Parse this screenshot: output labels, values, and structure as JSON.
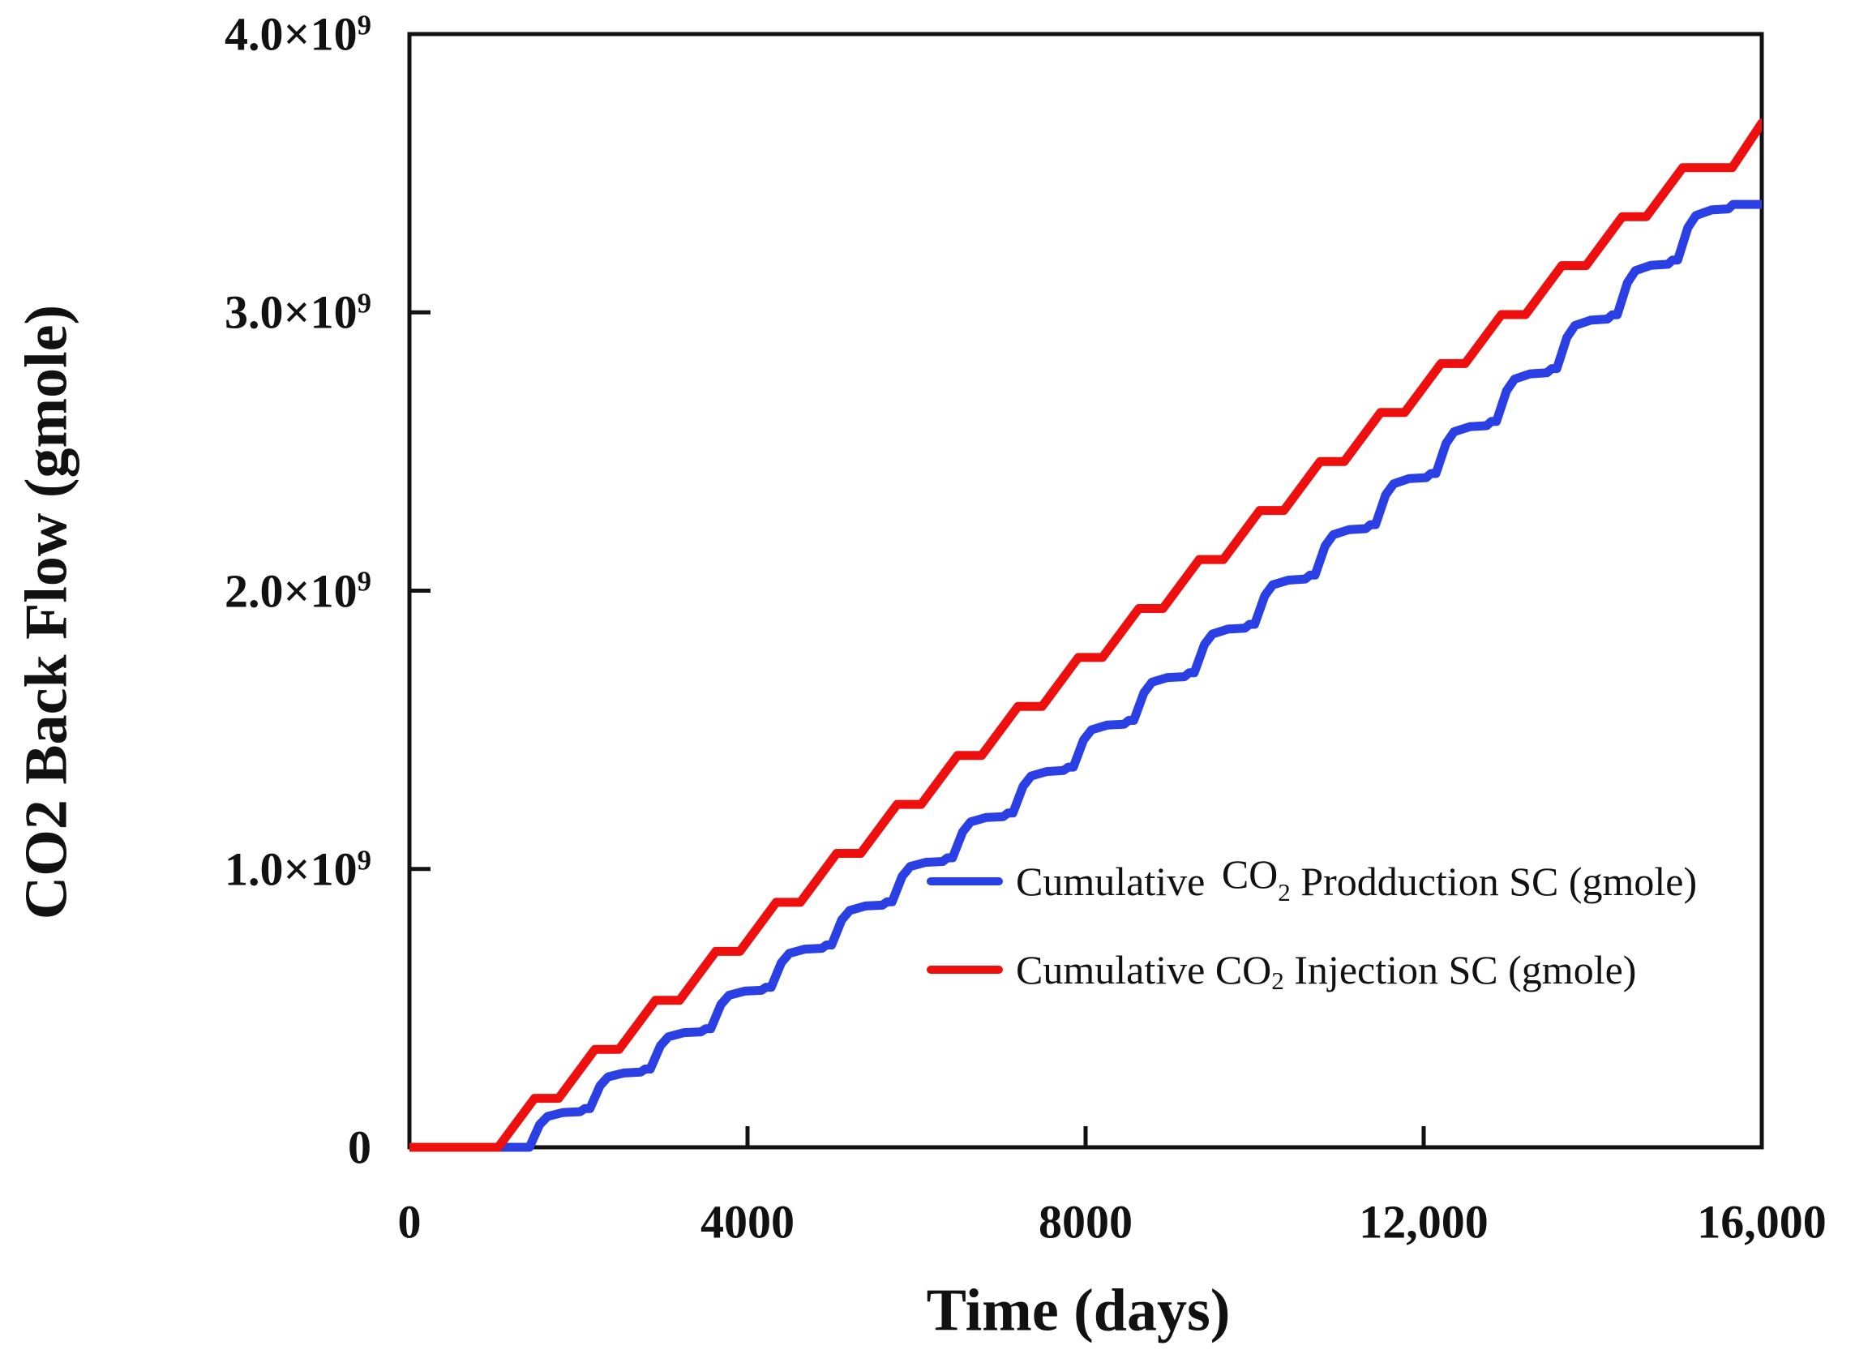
{
  "figure": {
    "x_axis": {
      "ticks": [
        {
          "value": 0,
          "label": "0"
        },
        {
          "value": 4000,
          "label": "4000"
        },
        {
          "value": 8000,
          "label": "8000"
        },
        {
          "value": 12000,
          "label": "12,000"
        },
        {
          "value": 16000,
          "label": "16,000"
        }
      ]
    },
    "y_axis": {
      "ticks": [
        {
          "value": 0,
          "base": "0",
          "sup": ""
        },
        {
          "value": 1000000000,
          "base": "1.0×10",
          "sup": "9"
        },
        {
          "value": 2000000000,
          "base": "2.0×10",
          "sup": "9"
        },
        {
          "value": 3000000000,
          "base": "3.0×10",
          "sup": "9"
        },
        {
          "value": 4000000000,
          "base": "4.0×10",
          "sup": "9"
        }
      ]
    },
    "legend": {
      "items": [
        {
          "prefix": "Cumulative",
          "co": "CO",
          "sub": "2",
          "suffix": " Prodduction SC (gmole)",
          "co_raised": true,
          "series": 0
        },
        {
          "prefix": "Cumulative",
          "co": "CO",
          "sub": "2",
          "suffix": " Injection SC (gmole)",
          "co_raised": false,
          "series": 1
        }
      ]
    }
  },
  "chart_data": {
    "type": "line",
    "title": "",
    "xlabel": "Time (days)",
    "ylabel": "CO2 Back Flow (gmole)",
    "xlim": [
      0,
      16000
    ],
    "ylim": [
      0,
      4000000000
    ],
    "x_ticks": [
      0,
      4000,
      8000,
      12000,
      16000
    ],
    "y_ticks": [
      0,
      1000000000,
      2000000000,
      3000000000,
      4000000000
    ],
    "grid": false,
    "legend_position": "inside-center-right",
    "value_scale": 1000000000,
    "value_unit": "gmole (points given in units of 1e9)",
    "series": [
      {
        "name": "Cumulative CO2 Prodduction SC (gmole)",
        "color": "#2a3fe4",
        "style": "stepped-rounded",
        "points": [
          [
            0,
            0
          ],
          [
            1420,
            0
          ],
          [
            1540,
            0.081
          ],
          [
            1635,
            0.111
          ],
          [
            1820,
            0.125
          ],
          [
            2020,
            0.128
          ],
          [
            2075,
            0.139
          ],
          [
            2135,
            0.139
          ],
          [
            2255,
            0.221
          ],
          [
            2350,
            0.253
          ],
          [
            2535,
            0.267
          ],
          [
            2735,
            0.27
          ],
          [
            2790,
            0.281
          ],
          [
            2850,
            0.281
          ],
          [
            2970,
            0.365
          ],
          [
            3065,
            0.397
          ],
          [
            3250,
            0.412
          ],
          [
            3450,
            0.415
          ],
          [
            3505,
            0.426
          ],
          [
            3565,
            0.426
          ],
          [
            3685,
            0.513
          ],
          [
            3780,
            0.546
          ],
          [
            3965,
            0.561
          ],
          [
            4165,
            0.564
          ],
          [
            4220,
            0.575
          ],
          [
            4280,
            0.575
          ],
          [
            4400,
            0.663
          ],
          [
            4495,
            0.697
          ],
          [
            4680,
            0.712
          ],
          [
            4880,
            0.715
          ],
          [
            4935,
            0.727
          ],
          [
            4995,
            0.727
          ],
          [
            5115,
            0.817
          ],
          [
            5210,
            0.851
          ],
          [
            5395,
            0.867
          ],
          [
            5595,
            0.87
          ],
          [
            5650,
            0.882
          ],
          [
            5710,
            0.882
          ],
          [
            5830,
            0.974
          ],
          [
            5925,
            1.009
          ],
          [
            6110,
            1.024
          ],
          [
            6310,
            1.027
          ],
          [
            6365,
            1.04
          ],
          [
            6425,
            1.04
          ],
          [
            6545,
            1.133
          ],
          [
            6640,
            1.169
          ],
          [
            6825,
            1.185
          ],
          [
            7025,
            1.188
          ],
          [
            7080,
            1.201
          ],
          [
            7140,
            1.201
          ],
          [
            7260,
            1.297
          ],
          [
            7355,
            1.334
          ],
          [
            7540,
            1.35
          ],
          [
            7740,
            1.354
          ],
          [
            7795,
            1.366
          ],
          [
            7855,
            1.366
          ],
          [
            7975,
            1.463
          ],
          [
            8070,
            1.5
          ],
          [
            8255,
            1.517
          ],
          [
            8455,
            1.52
          ],
          [
            8510,
            1.534
          ],
          [
            8570,
            1.534
          ],
          [
            8690,
            1.633
          ],
          [
            8785,
            1.671
          ],
          [
            8970,
            1.688
          ],
          [
            9170,
            1.691
          ],
          [
            9225,
            1.705
          ],
          [
            9285,
            1.705
          ],
          [
            9405,
            1.806
          ],
          [
            9500,
            1.844
          ],
          [
            9685,
            1.862
          ],
          [
            9885,
            1.865
          ],
          [
            9940,
            1.879
          ],
          [
            10000,
            1.879
          ],
          [
            10120,
            1.982
          ],
          [
            10215,
            2.021
          ],
          [
            10400,
            2.038
          ],
          [
            10600,
            2.042
          ],
          [
            10655,
            2.056
          ],
          [
            10715,
            2.056
          ],
          [
            10835,
            2.161
          ],
          [
            10930,
            2.201
          ],
          [
            11115,
            2.219
          ],
          [
            11315,
            2.223
          ],
          [
            11370,
            2.237
          ],
          [
            11430,
            2.237
          ],
          [
            11550,
            2.344
          ],
          [
            11645,
            2.384
          ],
          [
            11830,
            2.403
          ],
          [
            12030,
            2.406
          ],
          [
            12085,
            2.421
          ],
          [
            12145,
            2.421
          ],
          [
            12265,
            2.529
          ],
          [
            12360,
            2.571
          ],
          [
            12545,
            2.589
          ],
          [
            12745,
            2.593
          ],
          [
            12800,
            2.608
          ],
          [
            12860,
            2.608
          ],
          [
            12980,
            2.718
          ],
          [
            13075,
            2.76
          ],
          [
            13260,
            2.779
          ],
          [
            13460,
            2.783
          ],
          [
            13515,
            2.798
          ],
          [
            13575,
            2.798
          ],
          [
            13695,
            2.91
          ],
          [
            13790,
            2.953
          ],
          [
            13975,
            2.972
          ],
          [
            14175,
            2.976
          ],
          [
            14230,
            2.991
          ],
          [
            14290,
            2.991
          ],
          [
            14410,
            3.106
          ],
          [
            14505,
            3.15
          ],
          [
            14690,
            3.169
          ],
          [
            14890,
            3.173
          ],
          [
            14945,
            3.188
          ],
          [
            15005,
            3.188
          ],
          [
            15125,
            3.304
          ],
          [
            15220,
            3.348
          ],
          [
            15405,
            3.368
          ],
          [
            15605,
            3.372
          ],
          [
            15660,
            3.388
          ],
          [
            16000,
            3.388
          ]
        ]
      },
      {
        "name": "Cumulative CO2 Injection SC (gmole)",
        "color": "#ee0f0f",
        "style": "stepped",
        "points": [
          [
            0,
            0
          ],
          [
            1050,
            0
          ],
          [
            1480,
            0.176
          ],
          [
            1765,
            0.176
          ],
          [
            2195,
            0.352
          ],
          [
            2480,
            0.352
          ],
          [
            2910,
            0.528
          ],
          [
            3195,
            0.528
          ],
          [
            3625,
            0.704
          ],
          [
            3910,
            0.704
          ],
          [
            4340,
            0.88
          ],
          [
            4625,
            0.88
          ],
          [
            5055,
            1.056
          ],
          [
            5340,
            1.056
          ],
          [
            5770,
            1.232
          ],
          [
            6055,
            1.232
          ],
          [
            6485,
            1.408
          ],
          [
            6770,
            1.408
          ],
          [
            7200,
            1.584
          ],
          [
            7485,
            1.584
          ],
          [
            7915,
            1.76
          ],
          [
            8200,
            1.76
          ],
          [
            8630,
            1.936
          ],
          [
            8915,
            1.936
          ],
          [
            9345,
            2.112
          ],
          [
            9630,
            2.112
          ],
          [
            10060,
            2.288
          ],
          [
            10345,
            2.288
          ],
          [
            10775,
            2.464
          ],
          [
            11060,
            2.464
          ],
          [
            11490,
            2.64
          ],
          [
            11775,
            2.64
          ],
          [
            12205,
            2.816
          ],
          [
            12490,
            2.816
          ],
          [
            12920,
            2.992
          ],
          [
            13205,
            2.992
          ],
          [
            13635,
            3.168
          ],
          [
            13920,
            3.168
          ],
          [
            14350,
            3.344
          ],
          [
            14635,
            3.344
          ],
          [
            15065,
            3.52
          ],
          [
            15650,
            3.52
          ],
          [
            16000,
            3.68
          ]
        ]
      }
    ]
  }
}
